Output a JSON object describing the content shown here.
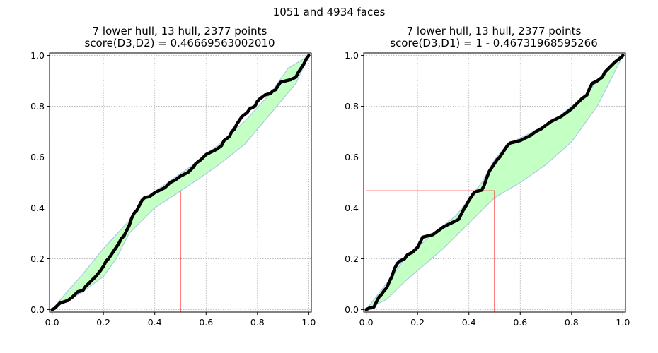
{
  "figure": {
    "suptitle": "1051 and 4934 faces"
  },
  "colors": {
    "hull_fill": "#c4ffc4",
    "hull_edge": "#aac8e8",
    "curve": "#000000",
    "marker_line": "#ff0000",
    "grid": "#b0b0b0"
  },
  "chart_data": [
    {
      "type": "line",
      "title_line1": "7 lower hull, 13 hull, 2377 points",
      "title_line2": "score(D3,D2) = 0.46669563002010",
      "xlim": [
        0,
        1
      ],
      "ylim": [
        0,
        1
      ],
      "xticks": [
        "0.0",
        "0.2",
        "0.4",
        "0.6",
        "0.8",
        "1.0"
      ],
      "yticks": [
        "0.0",
        "0.2",
        "0.4",
        "0.6",
        "0.8",
        "1.0"
      ],
      "grid": true,
      "marker": {
        "x": 0.5,
        "y": 0.4666956300201
      },
      "hull": {
        "upper": [
          [
            0.0,
            0.0
          ],
          [
            0.05,
            0.06
          ],
          [
            0.12,
            0.14
          ],
          [
            0.2,
            0.24
          ],
          [
            0.3,
            0.35
          ],
          [
            0.35,
            0.43
          ],
          [
            0.45,
            0.5
          ],
          [
            0.55,
            0.57
          ],
          [
            0.65,
            0.65
          ],
          [
            0.75,
            0.74
          ],
          [
            0.85,
            0.85
          ],
          [
            0.92,
            0.95
          ],
          [
            1.0,
            1.0
          ]
        ],
        "lower": [
          [
            0.0,
            0.0
          ],
          [
            0.12,
            0.07
          ],
          [
            0.2,
            0.13
          ],
          [
            0.25,
            0.2
          ],
          [
            0.3,
            0.3
          ],
          [
            0.4,
            0.4
          ],
          [
            0.55,
            0.5
          ],
          [
            0.65,
            0.57
          ],
          [
            0.75,
            0.65
          ],
          [
            0.85,
            0.77
          ],
          [
            0.95,
            0.89
          ],
          [
            1.0,
            1.0
          ]
        ]
      },
      "curve": [
        [
          0.0,
          0.0
        ],
        [
          0.01,
          0.005
        ],
        [
          0.02,
          0.015
        ],
        [
          0.03,
          0.025
        ],
        [
          0.06,
          0.035
        ],
        [
          0.08,
          0.05
        ],
        [
          0.1,
          0.07
        ],
        [
          0.12,
          0.075
        ],
        [
          0.13,
          0.09
        ],
        [
          0.15,
          0.11
        ],
        [
          0.17,
          0.13
        ],
        [
          0.19,
          0.155
        ],
        [
          0.2,
          0.17
        ],
        [
          0.21,
          0.19
        ],
        [
          0.22,
          0.2
        ],
        [
          0.23,
          0.215
        ],
        [
          0.24,
          0.23
        ],
        [
          0.25,
          0.245
        ],
        [
          0.26,
          0.26
        ],
        [
          0.27,
          0.28
        ],
        [
          0.28,
          0.29
        ],
        [
          0.29,
          0.31
        ],
        [
          0.3,
          0.33
        ],
        [
          0.31,
          0.36
        ],
        [
          0.32,
          0.38
        ],
        [
          0.33,
          0.39
        ],
        [
          0.34,
          0.41
        ],
        [
          0.35,
          0.43
        ],
        [
          0.36,
          0.44
        ],
        [
          0.38,
          0.445
        ],
        [
          0.4,
          0.46
        ],
        [
          0.42,
          0.47
        ],
        [
          0.44,
          0.48
        ],
        [
          0.46,
          0.5
        ],
        [
          0.48,
          0.51
        ],
        [
          0.5,
          0.525
        ],
        [
          0.52,
          0.535
        ],
        [
          0.53,
          0.54
        ],
        [
          0.55,
          0.56
        ],
        [
          0.56,
          0.575
        ],
        [
          0.58,
          0.59
        ],
        [
          0.6,
          0.61
        ],
        [
          0.62,
          0.62
        ],
        [
          0.64,
          0.63
        ],
        [
          0.66,
          0.645
        ],
        [
          0.67,
          0.665
        ],
        [
          0.69,
          0.68
        ],
        [
          0.7,
          0.7
        ],
        [
          0.71,
          0.71
        ],
        [
          0.72,
          0.73
        ],
        [
          0.73,
          0.745
        ],
        [
          0.74,
          0.76
        ],
        [
          0.76,
          0.775
        ],
        [
          0.77,
          0.79
        ],
        [
          0.79,
          0.8
        ],
        [
          0.8,
          0.82
        ],
        [
          0.81,
          0.83
        ],
        [
          0.83,
          0.845
        ],
        [
          0.85,
          0.85
        ],
        [
          0.86,
          0.86
        ],
        [
          0.87,
          0.865
        ],
        [
          0.88,
          0.88
        ],
        [
          0.89,
          0.895
        ],
        [
          0.91,
          0.9
        ],
        [
          0.93,
          0.905
        ],
        [
          0.95,
          0.915
        ],
        [
          0.96,
          0.935
        ],
        [
          0.97,
          0.95
        ],
        [
          0.98,
          0.965
        ],
        [
          0.99,
          0.985
        ],
        [
          1.0,
          1.0
        ]
      ]
    },
    {
      "type": "line",
      "title_line1": "7 lower hull, 13 hull, 2377 points",
      "title_line2": "score(D3,D1) = 1 - 0.46731968595266",
      "xlim": [
        0,
        1
      ],
      "ylim": [
        0,
        1
      ],
      "xticks": [
        "0.0",
        "0.2",
        "0.4",
        "0.6",
        "0.8",
        "1.0"
      ],
      "yticks": [
        "0.0",
        "0.2",
        "0.4",
        "0.6",
        "0.8",
        "1.0"
      ],
      "grid": true,
      "marker": {
        "x": 0.5,
        "y": 0.46731968595266
      },
      "hull": {
        "upper": [
          [
            0.0,
            0.0
          ],
          [
            0.1,
            0.13
          ],
          [
            0.15,
            0.2
          ],
          [
            0.25,
            0.29
          ],
          [
            0.35,
            0.37
          ],
          [
            0.45,
            0.5
          ],
          [
            0.5,
            0.59
          ],
          [
            0.55,
            0.65
          ],
          [
            0.65,
            0.7
          ],
          [
            0.75,
            0.76
          ],
          [
            0.85,
            0.84
          ],
          [
            0.92,
            0.92
          ],
          [
            1.0,
            1.0
          ]
        ],
        "lower": [
          [
            0.0,
            0.0
          ],
          [
            0.08,
            0.04
          ],
          [
            0.15,
            0.11
          ],
          [
            0.3,
            0.24
          ],
          [
            0.4,
            0.34
          ],
          [
            0.5,
            0.44
          ],
          [
            0.6,
            0.5
          ],
          [
            0.7,
            0.57
          ],
          [
            0.8,
            0.66
          ],
          [
            0.9,
            0.8
          ],
          [
            1.0,
            1.0
          ]
        ]
      },
      "curve": [
        [
          0.0,
          0.0
        ],
        [
          0.01,
          0.005
        ],
        [
          0.03,
          0.01
        ],
        [
          0.04,
          0.03
        ],
        [
          0.05,
          0.05
        ],
        [
          0.06,
          0.06
        ],
        [
          0.07,
          0.075
        ],
        [
          0.08,
          0.085
        ],
        [
          0.09,
          0.11
        ],
        [
          0.1,
          0.13
        ],
        [
          0.11,
          0.16
        ],
        [
          0.12,
          0.18
        ],
        [
          0.13,
          0.19
        ],
        [
          0.15,
          0.2
        ],
        [
          0.16,
          0.215
        ],
        [
          0.18,
          0.225
        ],
        [
          0.2,
          0.245
        ],
        [
          0.21,
          0.265
        ],
        [
          0.22,
          0.285
        ],
        [
          0.24,
          0.29
        ],
        [
          0.26,
          0.295
        ],
        [
          0.28,
          0.31
        ],
        [
          0.3,
          0.325
        ],
        [
          0.32,
          0.335
        ],
        [
          0.34,
          0.345
        ],
        [
          0.36,
          0.355
        ],
        [
          0.37,
          0.375
        ],
        [
          0.38,
          0.395
        ],
        [
          0.39,
          0.41
        ],
        [
          0.4,
          0.43
        ],
        [
          0.41,
          0.445
        ],
        [
          0.42,
          0.46
        ],
        [
          0.43,
          0.465
        ],
        [
          0.45,
          0.47
        ],
        [
          0.46,
          0.49
        ],
        [
          0.47,
          0.52
        ],
        [
          0.48,
          0.545
        ],
        [
          0.49,
          0.56
        ],
        [
          0.5,
          0.575
        ],
        [
          0.51,
          0.59
        ],
        [
          0.52,
          0.6
        ],
        [
          0.53,
          0.615
        ],
        [
          0.54,
          0.63
        ],
        [
          0.55,
          0.645
        ],
        [
          0.56,
          0.655
        ],
        [
          0.58,
          0.66
        ],
        [
          0.6,
          0.665
        ],
        [
          0.62,
          0.675
        ],
        [
          0.64,
          0.685
        ],
        [
          0.66,
          0.7
        ],
        [
          0.68,
          0.71
        ],
        [
          0.7,
          0.725
        ],
        [
          0.72,
          0.74
        ],
        [
          0.74,
          0.75
        ],
        [
          0.76,
          0.76
        ],
        [
          0.78,
          0.775
        ],
        [
          0.8,
          0.79
        ],
        [
          0.82,
          0.81
        ],
        [
          0.84,
          0.83
        ],
        [
          0.86,
          0.845
        ],
        [
          0.87,
          0.87
        ],
        [
          0.88,
          0.89
        ],
        [
          0.9,
          0.9
        ],
        [
          0.92,
          0.915
        ],
        [
          0.93,
          0.935
        ],
        [
          0.95,
          0.955
        ],
        [
          0.97,
          0.975
        ],
        [
          0.99,
          0.99
        ],
        [
          1.0,
          1.0
        ]
      ]
    }
  ]
}
